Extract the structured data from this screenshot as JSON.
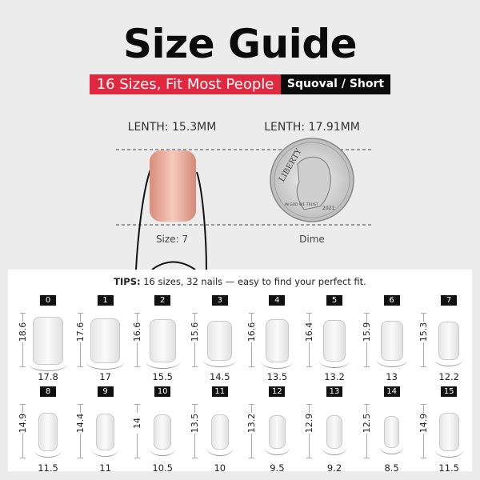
{
  "title": "Size Guide",
  "banner": {
    "tagline": "16 Sizes, Fit Most People",
    "shape": "Squoval  / Short"
  },
  "comparison": {
    "nail": {
      "length_label": "LENTH: 15.3MM",
      "caption": "Size: 7",
      "color": "#e8a596"
    },
    "dime": {
      "length_label": "LENTH: 17.91MM",
      "caption": "Dime",
      "coin_text": [
        "LIBERTY",
        "IN GOD WE TRUST",
        "2021"
      ]
    }
  },
  "tips": {
    "prefix": "TIPS:",
    "text": " 16 sizes, 32 nails — easy to find your perfect fit."
  },
  "sizes": [
    {
      "size": "0",
      "length": "18.6",
      "width": "17.8"
    },
    {
      "size": "1",
      "length": "17.6",
      "width": "17"
    },
    {
      "size": "2",
      "length": "16.6",
      "width": "15.5"
    },
    {
      "size": "3",
      "length": "15.6",
      "width": "14.5"
    },
    {
      "size": "4",
      "length": "16.6",
      "width": "13.5"
    },
    {
      "size": "5",
      "length": "16.4",
      "width": "13.2"
    },
    {
      "size": "6",
      "length": "15.9",
      "width": "13"
    },
    {
      "size": "7",
      "length": "15.3",
      "width": "12.2"
    },
    {
      "size": "8",
      "length": "14.9",
      "width": "11.5"
    },
    {
      "size": "9",
      "length": "14.4",
      "width": "11"
    },
    {
      "size": "10",
      "length": "14",
      "width": "10.5"
    },
    {
      "size": "11",
      "length": "13.5",
      "width": "10"
    },
    {
      "size": "12",
      "length": "13.2",
      "width": "9.5"
    },
    {
      "size": "13",
      "length": "12.9",
      "width": "9.2"
    },
    {
      "size": "14",
      "length": "12.5",
      "width": "8.5"
    },
    {
      "size": "15",
      "length": "14.9",
      "width": "11.5"
    }
  ],
  "colors": {
    "accent_red": "#e1283f",
    "black": "#0b0b0b",
    "background": "#ececec"
  }
}
